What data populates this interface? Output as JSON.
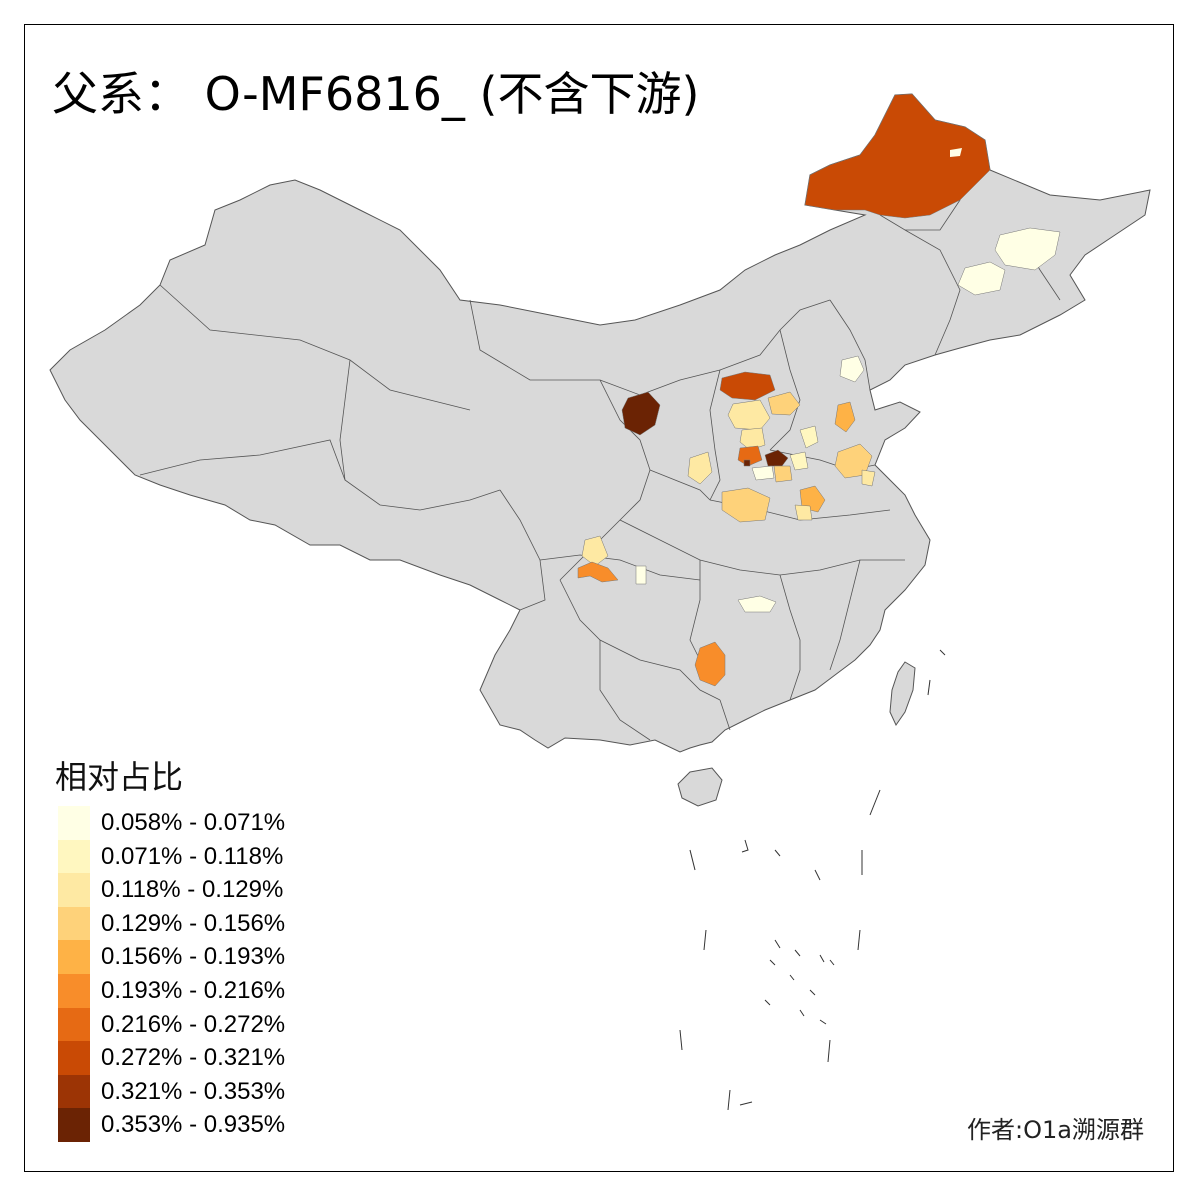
{
  "title": "父系： O-MF6816_ (不含下游)",
  "legend": {
    "title": "相对占比",
    "entries": [
      {
        "label": "0.058% - 0.071%",
        "color": "#FFFFE5"
      },
      {
        "label": "0.071% - 0.118%",
        "color": "#FFF7C0"
      },
      {
        "label": "0.118% - 0.129%",
        "color": "#FEE9A3"
      },
      {
        "label": "0.129% - 0.156%",
        "color": "#FED27A"
      },
      {
        "label": "0.156% - 0.193%",
        "color": "#FEB246"
      },
      {
        "label": "0.193% - 0.216%",
        "color": "#F88D2A"
      },
      {
        "label": "0.216% - 0.272%",
        "color": "#E66A14"
      },
      {
        "label": "0.272% - 0.321%",
        "color": "#C94A05"
      },
      {
        "label": "0.321% - 0.353%",
        "color": "#9C3405"
      },
      {
        "label": "0.353% - 0.935%",
        "color": "#6B2304"
      }
    ]
  },
  "credit": "作者:O1a溯源群",
  "map": {
    "base_fill": "#D9D9D9",
    "border_color": "#555555"
  }
}
